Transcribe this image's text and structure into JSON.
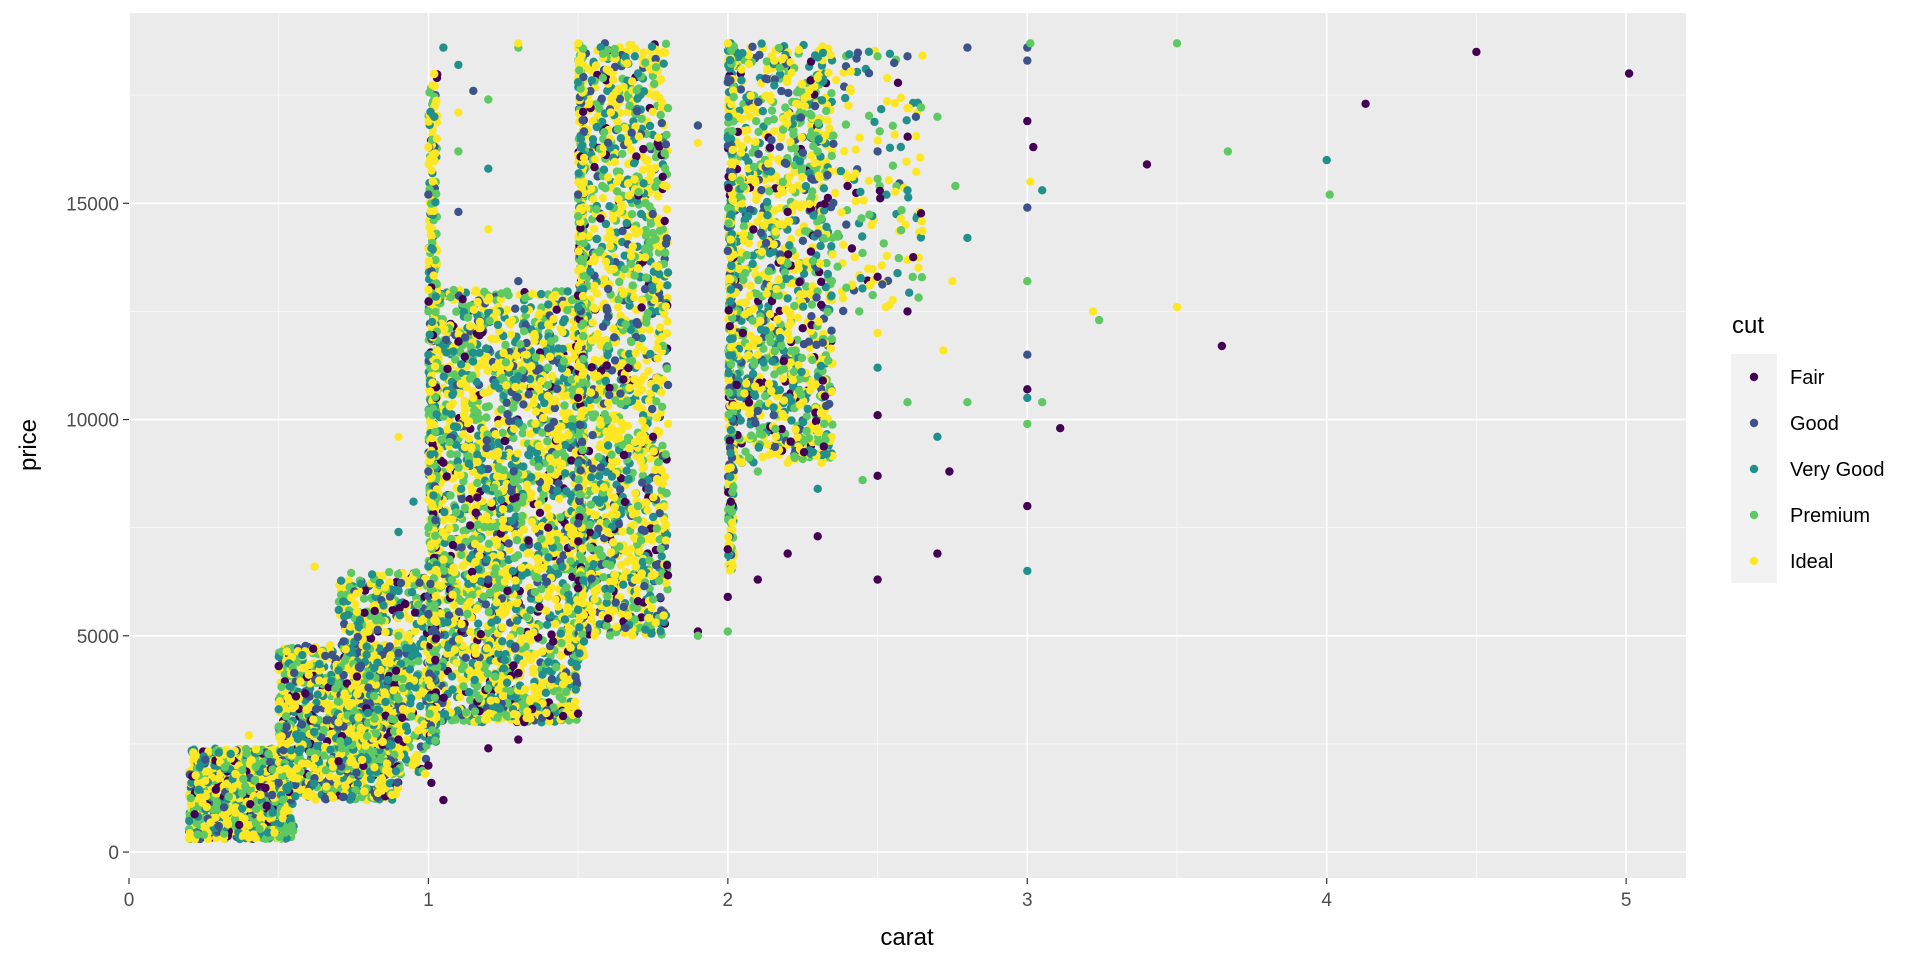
{
  "chart_data": {
    "type": "scatter",
    "title": "",
    "xlabel": "carat",
    "ylabel": "price",
    "xlim": [
      0,
      5.2
    ],
    "ylim": [
      -600,
      19400
    ],
    "x_ticks": [
      0,
      1,
      2,
      3,
      4,
      5
    ],
    "x_tick_labels": [
      "0",
      "1",
      "2",
      "3",
      "4",
      "5"
    ],
    "y_ticks": [
      0,
      5000,
      10000,
      15000
    ],
    "y_tick_labels": [
      "0",
      "5000",
      "10000",
      "15000"
    ],
    "grid": true,
    "legend": {
      "title": "cut",
      "placement": "right"
    },
    "series": [
      {
        "name": "Fair",
        "color": "#440154",
        "points": [
          [
            0.5,
            4300
          ],
          [
            0.7,
            2100
          ],
          [
            0.9,
            2600
          ],
          [
            1.0,
            2000
          ],
          [
            1.01,
            1600
          ],
          [
            1.05,
            1200
          ],
          [
            1.2,
            2400
          ],
          [
            1.3,
            2600
          ],
          [
            1.5,
            3200
          ],
          [
            1.5,
            6100
          ],
          [
            1.5,
            10500
          ],
          [
            1.6,
            5400
          ],
          [
            1.7,
            5800
          ],
          [
            1.8,
            6400
          ],
          [
            1.9,
            5100
          ],
          [
            2.0,
            5900
          ],
          [
            2.0,
            7000
          ],
          [
            2.01,
            8100
          ],
          [
            2.03,
            10800
          ],
          [
            2.1,
            6300
          ],
          [
            2.2,
            6900
          ],
          [
            2.3,
            7300
          ],
          [
            2.5,
            6300
          ],
          [
            2.5,
            8700
          ],
          [
            2.5,
            10100
          ],
          [
            2.5,
            13300
          ],
          [
            2.6,
            12500
          ],
          [
            2.7,
            6900
          ],
          [
            2.74,
            8800
          ],
          [
            3.0,
            8000
          ],
          [
            3.0,
            10700
          ],
          [
            3.0,
            16900
          ],
          [
            3.02,
            16300
          ],
          [
            3.11,
            9800
          ],
          [
            3.4,
            15900
          ],
          [
            3.65,
            11700
          ],
          [
            4.13,
            17300
          ],
          [
            4.5,
            18500
          ],
          [
            5.01,
            18000
          ],
          [
            1.05,
            9000
          ],
          [
            1.1,
            11800
          ],
          [
            1.2,
            6200
          ],
          [
            1.4,
            7500
          ],
          [
            2.05,
            12000
          ],
          [
            2.2,
            14800
          ],
          [
            2.4,
            15400
          ],
          [
            1.75,
            9600
          ]
        ]
      },
      {
        "name": "Good",
        "color": "#3b528b",
        "points": [
          [
            0.3,
            600
          ],
          [
            0.5,
            1600
          ],
          [
            0.7,
            2900
          ],
          [
            0.9,
            4600
          ],
          [
            1.0,
            5500
          ],
          [
            1.0,
            8800
          ],
          [
            1.0,
            15200
          ],
          [
            1.1,
            14800
          ],
          [
            1.15,
            17600
          ],
          [
            1.2,
            6300
          ],
          [
            1.3,
            13200
          ],
          [
            1.5,
            7600
          ],
          [
            1.5,
            15200
          ],
          [
            1.6,
            16400
          ],
          [
            1.7,
            12200
          ],
          [
            1.8,
            10800
          ],
          [
            1.9,
            16800
          ],
          [
            2.0,
            13900
          ],
          [
            2.0,
            17800
          ],
          [
            2.1,
            10200
          ],
          [
            2.3,
            14300
          ],
          [
            2.5,
            16200
          ],
          [
            2.6,
            18400
          ],
          [
            2.8,
            18600
          ],
          [
            3.0,
            14900
          ],
          [
            3.0,
            11500
          ],
          [
            3.0,
            18300
          ],
          [
            3.0,
            18600
          ],
          [
            1.4,
            9800
          ],
          [
            0.8,
            3800
          ]
        ]
      },
      {
        "name": "Very Good",
        "color": "#21908c",
        "points": [
          [
            0.3,
            2300
          ],
          [
            0.5,
            3300
          ],
          [
            0.7,
            4200
          ],
          [
            0.85,
            5700
          ],
          [
            0.9,
            7400
          ],
          [
            1.0,
            6600
          ],
          [
            1.0,
            11500
          ],
          [
            1.02,
            17000
          ],
          [
            1.05,
            18600
          ],
          [
            1.1,
            18200
          ],
          [
            1.3,
            11000
          ],
          [
            1.5,
            5600
          ],
          [
            1.5,
            12600
          ],
          [
            1.5,
            17800
          ],
          [
            1.6,
            9400
          ],
          [
            1.7,
            18000
          ],
          [
            1.8,
            13400
          ],
          [
            2.0,
            16500
          ],
          [
            2.2,
            12800
          ],
          [
            2.3,
            8400
          ],
          [
            2.5,
            11200
          ],
          [
            2.6,
            15300
          ],
          [
            2.7,
            9600
          ],
          [
            2.8,
            14200
          ],
          [
            3.0,
            6500
          ],
          [
            3.0,
            10500
          ],
          [
            3.05,
            15300
          ],
          [
            4.0,
            16000
          ],
          [
            1.2,
            15800
          ],
          [
            0.95,
            8100
          ]
        ]
      },
      {
        "name": "Premium",
        "color": "#5ec962",
        "points": [
          [
            0.25,
            400
          ],
          [
            0.5,
            2900
          ],
          [
            0.7,
            3900
          ],
          [
            0.9,
            5000
          ],
          [
            1.0,
            7500
          ],
          [
            1.0,
            12500
          ],
          [
            1.1,
            16200
          ],
          [
            1.2,
            17400
          ],
          [
            1.3,
            18600
          ],
          [
            1.5,
            14700
          ],
          [
            1.6,
            11700
          ],
          [
            1.7,
            8000
          ],
          [
            1.8,
            17200
          ],
          [
            1.9,
            5000
          ],
          [
            2.0,
            5100
          ],
          [
            2.1,
            8800
          ],
          [
            2.2,
            13600
          ],
          [
            2.3,
            16200
          ],
          [
            2.5,
            18400
          ],
          [
            2.6,
            10400
          ],
          [
            2.7,
            17000
          ],
          [
            2.76,
            15400
          ],
          [
            2.8,
            10400
          ],
          [
            3.0,
            9900
          ],
          [
            3.0,
            13200
          ],
          [
            3.01,
            18700
          ],
          [
            3.05,
            10400
          ],
          [
            3.24,
            12300
          ],
          [
            3.5,
            18700
          ],
          [
            3.67,
            16200
          ],
          [
            4.01,
            15200
          ],
          [
            2.45,
            8600
          ]
        ]
      },
      {
        "name": "Ideal",
        "color": "#fde725",
        "points": [
          [
            0.3,
            1700
          ],
          [
            0.4,
            2700
          ],
          [
            0.6,
            4100
          ],
          [
            0.62,
            6600
          ],
          [
            0.8,
            5100
          ],
          [
            0.9,
            9600
          ],
          [
            1.0,
            13000
          ],
          [
            1.0,
            16300
          ],
          [
            1.1,
            17100
          ],
          [
            1.2,
            14400
          ],
          [
            1.3,
            18700
          ],
          [
            1.4,
            12200
          ],
          [
            1.5,
            18700
          ],
          [
            1.6,
            15600
          ],
          [
            1.7,
            13500
          ],
          [
            1.8,
            9900
          ],
          [
            1.9,
            16400
          ],
          [
            2.0,
            18700
          ],
          [
            2.1,
            11500
          ],
          [
            2.2,
            9000
          ],
          [
            2.3,
            17900
          ],
          [
            2.4,
            15600
          ],
          [
            2.5,
            12000
          ],
          [
            2.6,
            17200
          ],
          [
            2.72,
            11600
          ],
          [
            2.75,
            13200
          ],
          [
            3.01,
            15500
          ],
          [
            3.22,
            12500
          ],
          [
            3.5,
            12600
          ],
          [
            1.25,
            7500
          ],
          [
            0.7,
            3000
          ],
          [
            1.15,
            10500
          ]
        ]
      }
    ],
    "clusters": [
      {
        "x": [
          0.2,
          0.55
        ],
        "y": [
          300,
          2400
        ],
        "n": 1000
      },
      {
        "x": [
          0.5,
          0.9
        ],
        "y": [
          1200,
          4800
        ],
        "n": 1000
      },
      {
        "x": [
          0.7,
          1.0
        ],
        "y": [
          1800,
          6500
        ],
        "n": 600
      },
      {
        "x": [
          1.0,
          1.5
        ],
        "y": [
          3000,
          13000
        ],
        "n": 2200
      },
      {
        "x": [
          1.0,
          1.03
        ],
        "y": [
          2500,
          18000
        ],
        "n": 400
      },
      {
        "x": [
          1.5,
          1.8
        ],
        "y": [
          5000,
          18700
        ],
        "n": 1500
      },
      {
        "x": [
          1.5,
          1.52
        ],
        "y": [
          4500,
          18700
        ],
        "n": 400
      },
      {
        "x": [
          2.0,
          2.35
        ],
        "y": [
          9000,
          18700
        ],
        "n": 1200
      },
      {
        "x": [
          2.0,
          2.02
        ],
        "y": [
          6500,
          18700
        ],
        "n": 300
      },
      {
        "x": [
          2.35,
          2.65
        ],
        "y": [
          12500,
          18600
        ],
        "n": 150
      }
    ]
  }
}
